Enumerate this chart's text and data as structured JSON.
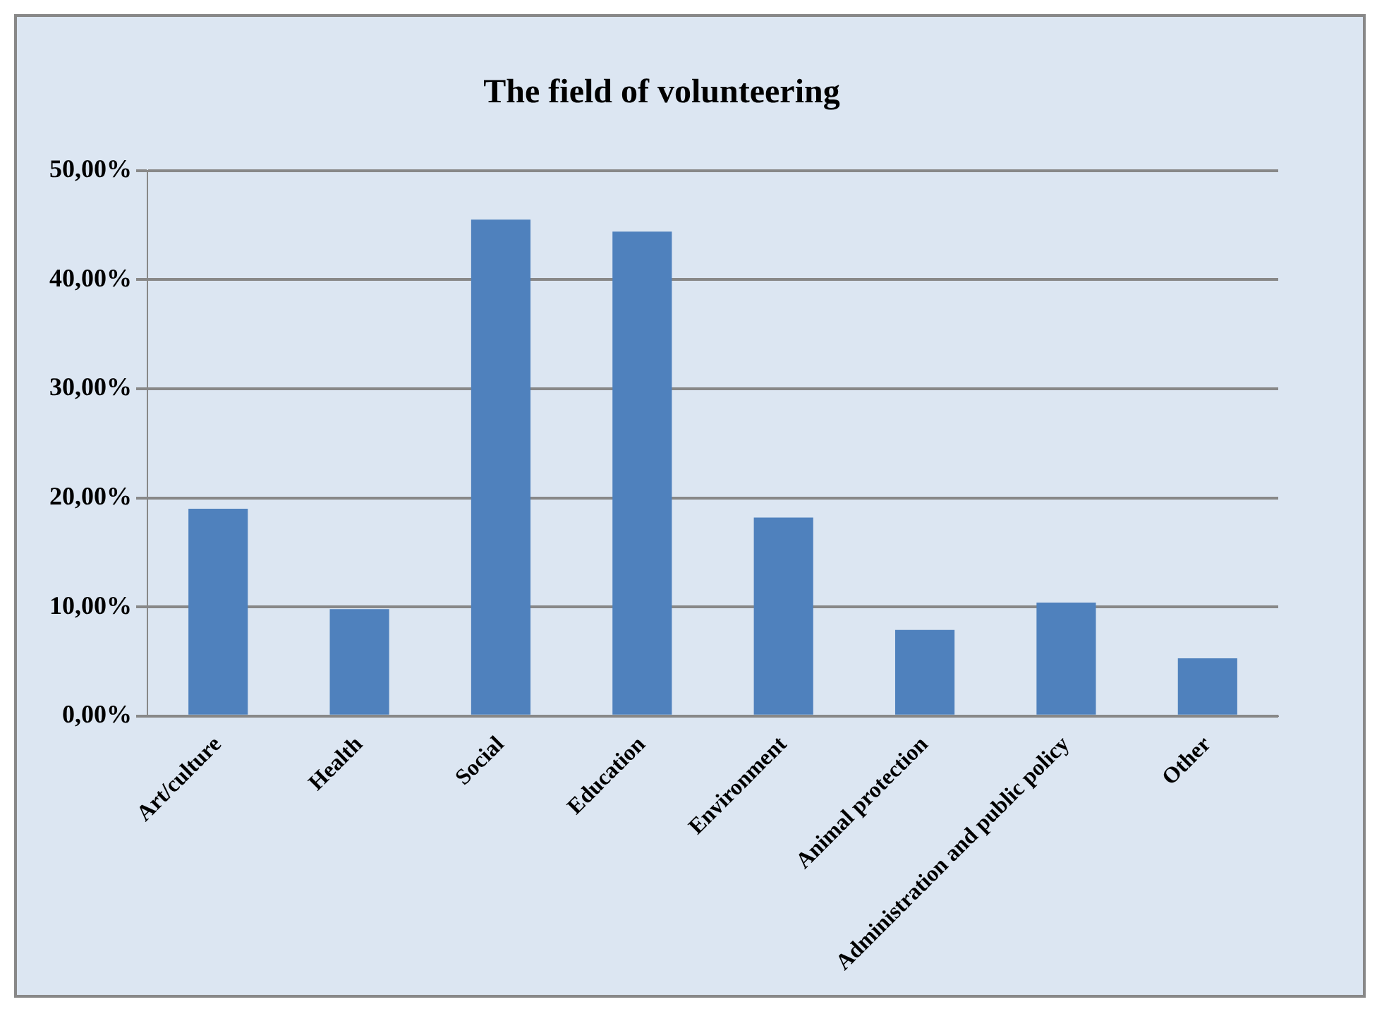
{
  "chart_data": {
    "type": "bar",
    "title": "The field of volunteering",
    "categories": [
      "Art/culture",
      "Health",
      "Social",
      "Education",
      "Environment",
      "Animal protection",
      "Administration and public policy",
      "Other"
    ],
    "values": [
      19.0,
      9.8,
      45.5,
      44.4,
      18.2,
      7.9,
      10.4,
      5.3
    ],
    "color": "#4f81bd",
    "ylim": [
      0,
      50
    ],
    "yticks": [
      {
        "value": 0,
        "label": "0,00%"
      },
      {
        "value": 10,
        "label": "10,00%"
      },
      {
        "value": 20,
        "label": "20,00%"
      },
      {
        "value": 30,
        "label": "30,00%"
      },
      {
        "value": 40,
        "label": "40,00%"
      },
      {
        "value": 50,
        "label": "50,00%"
      }
    ],
    "grid": "y",
    "legend": false
  }
}
